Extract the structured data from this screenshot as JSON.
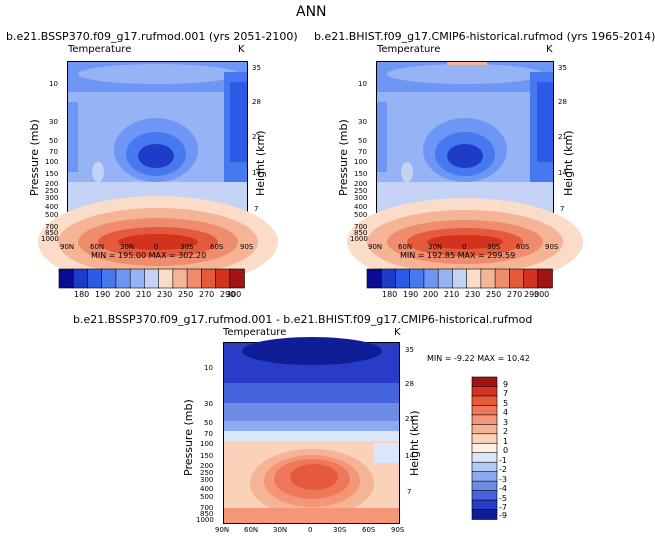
{
  "page_title": "ANN",
  "panels": [
    {
      "header": "b.e21.BSSP370.f09_g17.rufmod.001 (yrs 2051-2100)",
      "variable": "Temperature",
      "units": "K",
      "min_max": "MIN = 195.00  MAX = 302.20",
      "colorbar_labels": [
        "180",
        "190",
        "200",
        "210",
        "230",
        "250",
        "270",
        "290",
        "300"
      ]
    },
    {
      "header": "b.e21.BHIST.f09_g17.CMIP6-historical.rufmod (yrs 1965-2014)",
      "variable": "Temperature",
      "units": "K",
      "min_max": "MIN = 192.85  MAX = 299.59",
      "colorbar_labels": [
        "180",
        "190",
        "200",
        "210",
        "230",
        "250",
        "270",
        "290",
        "300"
      ]
    },
    {
      "header": "b.e21.BSSP370.f09_g17.rufmod.001 - b.e21.BHIST.f09_g17.CMIP6-historical.rufmod",
      "variable": "Temperature",
      "units": "K",
      "min_max": "MIN = -9.22    MAX = 10.42",
      "colorbar_labels": [
        "9",
        "7",
        "5",
        "4",
        "3",
        "2",
        "1",
        "0",
        "-1",
        "-2",
        "-3",
        "-4",
        "-5",
        "-7",
        "-9"
      ]
    }
  ],
  "axes": {
    "ylabel_left": "Pressure (mb)",
    "ylabel_right": "Height (km)",
    "pressure_ticks": [
      "10",
      "30",
      "50",
      "70",
      "100",
      "150",
      "200",
      "250",
      "300",
      "400",
      "500",
      "700",
      "850",
      "1000"
    ],
    "height_ticks": [
      "35",
      "28",
      "21",
      "14",
      "7"
    ],
    "lat_ticks": [
      "90N",
      "60N",
      "30N",
      "0",
      "30S",
      "60S",
      "90S"
    ]
  },
  "colors": {
    "abs_scale": [
      "#0a0a96",
      "#1e3cc8",
      "#2d5ae6",
      "#4678f0",
      "#6e96f5",
      "#96b4f5",
      "#c3d2f5",
      "#fadcc8",
      "#f5b496",
      "#f08c6e",
      "#e65a3c",
      "#d2321e",
      "#a01414"
    ],
    "diff_scale": [
      "#a01414",
      "#d2321e",
      "#e65a3c",
      "#f0785a",
      "#f59678",
      "#f5b496",
      "#fad2b9",
      "#fff0e1",
      "#dce6fa",
      "#b4c8f5",
      "#8caaf0",
      "#6e8ce6",
      "#4664dc",
      "#283cc8",
      "#0f1e96"
    ]
  },
  "chart_data": [
    {
      "type": "heatmap",
      "title": "b.e21.BSSP370.f09_g17.rufmod.001 (yrs 2051-2100)",
      "variable": "Temperature",
      "units": "K",
      "xlabel": "",
      "ylabel": "Pressure (mb)",
      "ylabel_right": "Height (km)",
      "x_ticks": [
        "90N",
        "60N",
        "30N",
        "0",
        "30S",
        "60S",
        "90S"
      ],
      "y_ticks": [
        "10",
        "30",
        "50",
        "70",
        "100",
        "150",
        "200",
        "250",
        "300",
        "400",
        "500",
        "700",
        "850",
        "1000"
      ],
      "min": 195.0,
      "max": 302.2,
      "levels": [
        180,
        190,
        200,
        210,
        230,
        250,
        270,
        290,
        300
      ]
    },
    {
      "type": "heatmap",
      "title": "b.e21.BHIST.f09_g17.CMIP6-historical.rufmod (yrs 1965-2014)",
      "variable": "Temperature",
      "units": "K",
      "xlabel": "",
      "ylabel": "Pressure (mb)",
      "ylabel_right": "Height (km)",
      "x_ticks": [
        "90N",
        "60N",
        "30N",
        "0",
        "30S",
        "60S",
        "90S"
      ],
      "y_ticks": [
        "10",
        "30",
        "50",
        "70",
        "100",
        "150",
        "200",
        "250",
        "300",
        "400",
        "500",
        "700",
        "850",
        "1000"
      ],
      "min": 192.85,
      "max": 299.59,
      "levels": [
        180,
        190,
        200,
        210,
        230,
        250,
        270,
        290,
        300
      ]
    },
    {
      "type": "heatmap",
      "title": "b.e21.BSSP370.f09_g17.rufmod.001 - b.e21.BHIST.f09_g17.CMIP6-historical.rufmod",
      "variable": "Temperature",
      "units": "K",
      "xlabel": "",
      "ylabel": "Pressure (mb)",
      "ylabel_right": "Height (km)",
      "x_ticks": [
        "90N",
        "60N",
        "30N",
        "0",
        "30S",
        "60S",
        "90S"
      ],
      "y_ticks": [
        "10",
        "30",
        "50",
        "70",
        "100",
        "150",
        "200",
        "250",
        "300",
        "400",
        "500",
        "700",
        "850",
        "1000"
      ],
      "min": -9.22,
      "max": 10.42,
      "levels": [
        -9,
        -7,
        -5,
        -4,
        -3,
        -2,
        -1,
        0,
        1,
        2,
        3,
        4,
        5,
        7,
        9
      ]
    }
  ]
}
